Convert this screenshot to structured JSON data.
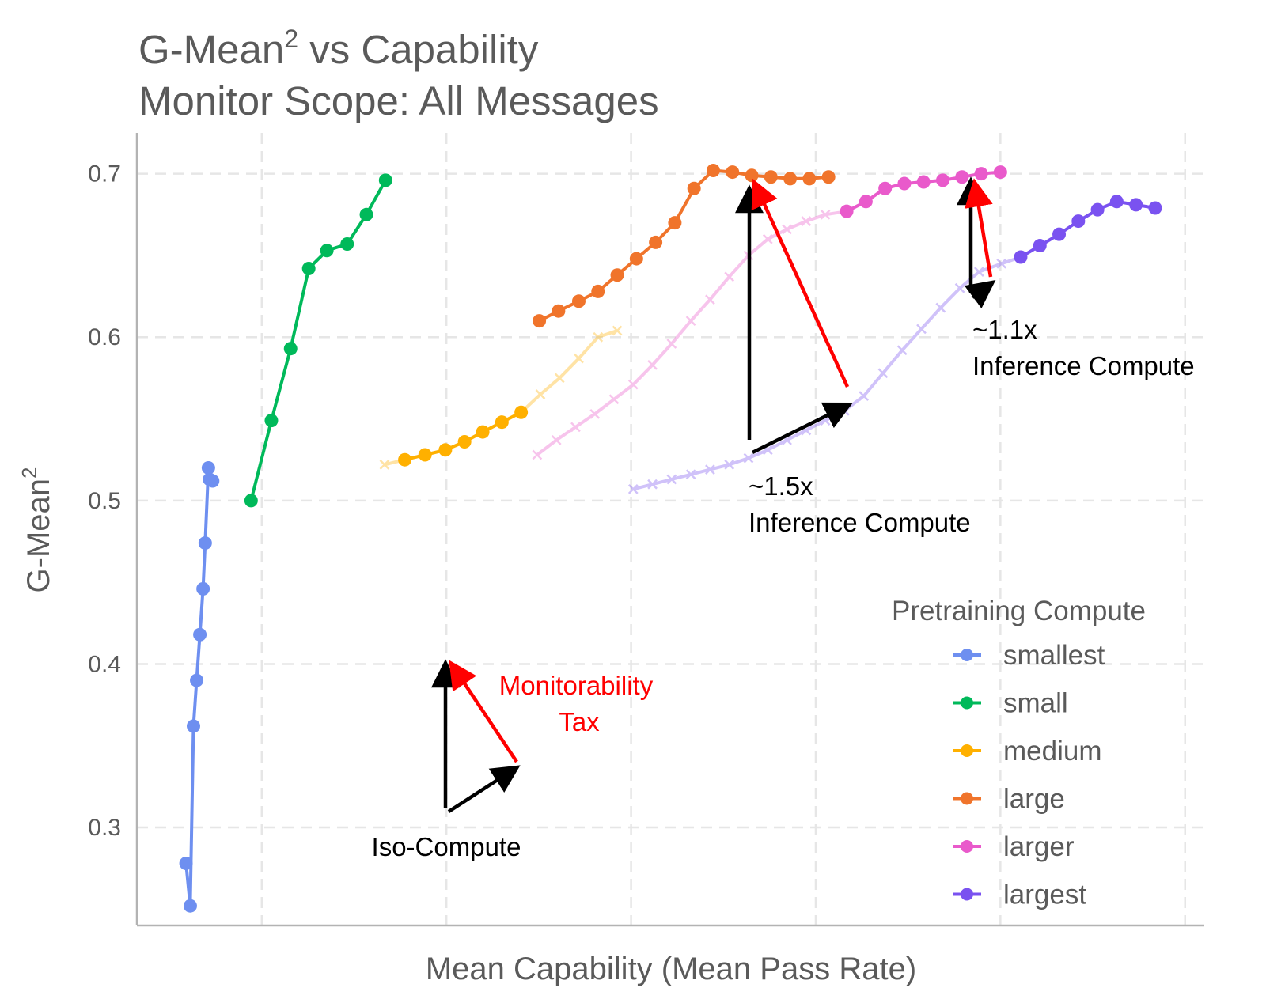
{
  "chart_data": {
    "type": "line",
    "title_line1": "G-Mean",
    "title_sup": "2",
    "title_line1_rest": " vs Capability",
    "title_line2": "Monitor Scope: All Messages",
    "xlabel": "Mean Capability (Mean Pass Rate)",
    "ylabel": "G-Mean",
    "ylabel_sup": "2",
    "xlim": [
      0,
      1
    ],
    "ylim": [
      0.24,
      0.725
    ],
    "y_ticks": [
      0.3,
      0.4,
      0.5,
      0.6,
      0.7
    ],
    "y_tick_labels": [
      "0.3",
      "0.4",
      "0.5",
      "0.6",
      "0.7"
    ],
    "x_gridlines": [
      0.117,
      0.29,
      0.463,
      0.636,
      0.809,
      0.982
    ],
    "grid": true,
    "legend": {
      "title": "Pretraining Compute",
      "position": "right",
      "entries": [
        "smallest",
        "small",
        "medium",
        "large",
        "larger",
        "largest"
      ]
    },
    "series": [
      {
        "name": "smallest",
        "color": "#6e8ff0",
        "style": "solid-dots",
        "x": [
          0.046,
          0.05,
          0.053,
          0.056,
          0.059,
          0.062,
          0.064,
          0.067,
          0.068,
          0.071
        ],
        "y": [
          0.278,
          0.252,
          0.362,
          0.39,
          0.418,
          0.446,
          0.474,
          0.52,
          0.513,
          0.512
        ]
      },
      {
        "name": "small",
        "color": "#00b95a",
        "style": "solid-dots",
        "x": [
          0.107,
          0.126,
          0.144,
          0.161,
          0.178,
          0.197,
          0.215,
          0.233
        ],
        "y": [
          0.5,
          0.549,
          0.593,
          0.642,
          0.653,
          0.657,
          0.675,
          0.696
        ]
      },
      {
        "name": "medium",
        "color": "#ffb000",
        "style": "solid-dots",
        "x": [
          0.251,
          0.27,
          0.289,
          0.307,
          0.324,
          0.342,
          0.36
        ],
        "y": [
          0.525,
          0.528,
          0.531,
          0.536,
          0.542,
          0.548,
          0.554
        ]
      },
      {
        "name": "medium-faded",
        "color": "#ffb000",
        "style": "faded-x",
        "x": [
          0.232,
          0.251,
          0.27,
          0.289,
          0.307,
          0.324,
          0.342,
          0.36,
          0.378,
          0.396,
          0.414,
          0.432,
          0.45
        ],
        "y": [
          0.522,
          0.525,
          0.528,
          0.531,
          0.536,
          0.542,
          0.548,
          0.554,
          0.565,
          0.575,
          0.587,
          0.6,
          0.604
        ]
      },
      {
        "name": "large",
        "color": "#f0742b",
        "style": "solid-dots",
        "x": [
          0.377,
          0.395,
          0.414,
          0.432,
          0.45,
          0.468,
          0.486,
          0.504,
          0.522,
          0.54,
          0.558,
          0.576,
          0.594,
          0.612,
          0.63,
          0.648
        ],
        "y": [
          0.61,
          0.616,
          0.622,
          0.628,
          0.638,
          0.648,
          0.658,
          0.67,
          0.691,
          0.702,
          0.701,
          0.699,
          0.698,
          0.697,
          0.697,
          0.698
        ]
      },
      {
        "name": "larger",
        "color": "#e95acb",
        "style": "solid-dots",
        "x": [
          0.665,
          0.683,
          0.701,
          0.719,
          0.737,
          0.755,
          0.773,
          0.791,
          0.809
        ],
        "y": [
          0.677,
          0.683,
          0.691,
          0.694,
          0.695,
          0.696,
          0.698,
          0.7,
          0.701
        ]
      },
      {
        "name": "larger-faded",
        "color": "#e95acb",
        "style": "faded-x",
        "x": [
          0.375,
          0.393,
          0.411,
          0.429,
          0.447,
          0.465,
          0.483,
          0.501,
          0.519,
          0.537,
          0.555,
          0.573,
          0.591,
          0.609,
          0.627,
          0.645,
          0.665
        ],
        "y": [
          0.528,
          0.537,
          0.545,
          0.553,
          0.562,
          0.571,
          0.583,
          0.596,
          0.61,
          0.623,
          0.637,
          0.65,
          0.66,
          0.666,
          0.671,
          0.675,
          0.677
        ]
      },
      {
        "name": "largest",
        "color": "#7a52f0",
        "style": "solid-dots",
        "x": [
          0.828,
          0.846,
          0.864,
          0.882,
          0.9,
          0.918,
          0.936,
          0.954
        ],
        "y": [
          0.649,
          0.656,
          0.663,
          0.671,
          0.678,
          0.683,
          0.681,
          0.679
        ]
      },
      {
        "name": "largest-faded",
        "color": "#7a52f0",
        "style": "faded-x",
        "x": [
          0.465,
          0.483,
          0.501,
          0.519,
          0.537,
          0.555,
          0.573,
          0.591,
          0.609,
          0.627,
          0.645,
          0.663,
          0.681,
          0.699,
          0.717,
          0.735,
          0.753,
          0.771,
          0.789,
          0.81,
          0.828
        ],
        "y": [
          0.507,
          0.51,
          0.513,
          0.516,
          0.519,
          0.522,
          0.526,
          0.531,
          0.537,
          0.543,
          0.549,
          0.555,
          0.564,
          0.578,
          0.592,
          0.605,
          0.618,
          0.63,
          0.64,
          0.645,
          0.649
        ]
      }
    ],
    "annotations": {
      "iso_compute": {
        "text": "Iso-Compute"
      },
      "monitorability_tax": {
        "line1": "Monitorability",
        "line2": "Tax",
        "color": "#ff0000"
      },
      "inference_15": {
        "line1": "~1.5x",
        "line2": "Inference Compute"
      },
      "inference_11": {
        "line1": "~1.1x",
        "line2": "Inference Compute"
      }
    }
  }
}
